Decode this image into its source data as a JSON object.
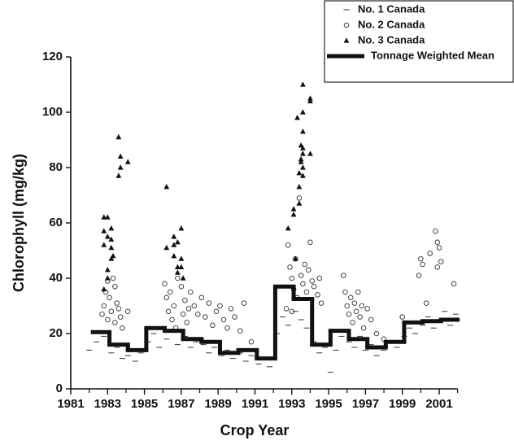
{
  "chart_data": {
    "type": "scatter",
    "x_label": "Crop Year",
    "y_label": "Chlorophyll (mg/kg)",
    "xlim": [
      1981,
      2002
    ],
    "ylim": [
      0,
      120
    ],
    "xticks": [
      1981,
      1983,
      1985,
      1987,
      1989,
      1991,
      1993,
      1995,
      1997,
      1999,
      2001
    ],
    "xminorticks": [
      1982,
      1984,
      1986,
      1988,
      1990,
      1992,
      1994,
      1996,
      1998,
      2000,
      2002
    ],
    "yticks": [
      0,
      20,
      40,
      60,
      80,
      100,
      120
    ],
    "legend": "top-right",
    "series": [
      {
        "name": "No. 1 Canada",
        "color": "#333333",
        "marker": "dash",
        "x": [
          1982.0,
          1982.4,
          1982.8,
          1983.2,
          1983.5,
          1983.8,
          1984.1,
          1984.5,
          1984.8,
          1985.2,
          1985.5,
          1985.8,
          1986.2,
          1986.5,
          1986.8,
          1987.2,
          1987.5,
          1987.8,
          1988.2,
          1988.5,
          1988.8,
          1989.2,
          1989.5,
          1989.8,
          1990.2,
          1990.5,
          1990.8,
          1991.2,
          1991.5,
          1991.8,
          1992.2,
          1992.5,
          1992.8,
          1993.2,
          1993.5,
          1993.8,
          1994.2,
          1994.5,
          1994.8,
          1995.1,
          1995.4,
          1995.7,
          1996.1,
          1996.4,
          1996.7,
          1997.0,
          1997.3,
          1997.6,
          1998.0,
          1998.3,
          1998.7,
          1999.1,
          1999.4,
          1999.7,
          2000.1,
          2000.4,
          2000.7,
          2001.0,
          2001.3,
          2001.6,
          2001.9
        ],
        "values": [
          14,
          17,
          19,
          13,
          15,
          11,
          12,
          10,
          13,
          17,
          20,
          15,
          18,
          21,
          16,
          19,
          15,
          17,
          16,
          13,
          15,
          12,
          14,
          11,
          13,
          10,
          12,
          9,
          11,
          8,
          20,
          26,
          23,
          28,
          25,
          22,
          17,
          13,
          15,
          6,
          14,
          19,
          17,
          15,
          19,
          14,
          16,
          12,
          14,
          17,
          15,
          19,
          22,
          20,
          23,
          26,
          22,
          25,
          28,
          23,
          27
        ]
      },
      {
        "name": "No. 2 Canada",
        "color": "#333333",
        "marker": "circle",
        "x": [
          1982.8,
          1982.9,
          1983.0,
          1983.1,
          1983.2,
          1983.3,
          1983.4,
          1983.5,
          1983.6,
          1983.7,
          1983.8,
          1982.7,
          1983.0,
          1984.1,
          1983.4,
          1986.1,
          1986.2,
          1986.3,
          1986.4,
          1986.5,
          1986.6,
          1986.7,
          1986.8,
          1987.0,
          1987.1,
          1987.2,
          1987.3,
          1987.4,
          1987.5,
          1987.7,
          1987.9,
          1988.1,
          1988.3,
          1988.5,
          1988.7,
          1988.9,
          1989.1,
          1989.3,
          1989.5,
          1989.7,
          1989.9,
          1990.2,
          1990.4,
          1990.8,
          1992.7,
          1992.8,
          1992.9,
          1993.0,
          1993.1,
          1993.2,
          1993.3,
          1993.4,
          1993.5,
          1993.6,
          1993.7,
          1993.8,
          1993.9,
          1994.0,
          1994.1,
          1994.2,
          1994.4,
          1994.5,
          1994.6,
          1993.0,
          1995.8,
          1995.9,
          1996.0,
          1996.1,
          1996.2,
          1996.3,
          1996.4,
          1996.5,
          1996.6,
          1996.7,
          1996.8,
          1996.9,
          1997.1,
          1997.3,
          1997.6,
          1998.0,
          1999.0,
          1999.9,
          2000.0,
          2000.1,
          2000.3,
          2000.5,
          2000.8,
          2000.9,
          2001.0,
          2001.1,
          2000.9,
          2001.8
        ],
        "values": [
          30,
          35,
          39,
          33,
          28,
          40,
          37,
          31,
          29,
          26,
          22,
          27,
          25,
          28,
          24,
          38,
          33,
          28,
          35,
          25,
          30,
          22,
          40,
          37,
          27,
          32,
          24,
          29,
          35,
          30,
          27,
          33,
          26,
          31,
          23,
          28,
          30,
          25,
          22,
          29,
          26,
          21,
          31,
          17,
          29,
          52,
          44,
          40,
          36,
          47,
          33,
          69,
          41,
          38,
          45,
          35,
          43,
          53,
          39,
          37,
          34,
          40,
          31,
          28,
          41,
          35,
          30,
          27,
          33,
          24,
          31,
          28,
          35,
          26,
          30,
          22,
          29,
          25,
          20,
          18,
          26,
          41,
          47,
          45,
          31,
          49,
          57,
          53,
          51,
          46,
          44,
          38
        ]
      },
      {
        "name": "No. 3 Canada",
        "color": "#111111",
        "marker": "triangle",
        "x": [
          1982.8,
          1982.8,
          1982.8,
          1982.8,
          1983.0,
          1983.0,
          1983.0,
          1983.0,
          1983.2,
          1983.2,
          1983.2,
          1983.2,
          1983.3,
          1983.6,
          1983.6,
          1983.7,
          1983.7,
          1984.1,
          1986.2,
          1986.2,
          1986.6,
          1986.6,
          1986.6,
          1986.8,
          1986.8,
          1986.8,
          1987.0,
          1987.0,
          1987.0,
          1987.1,
          1992.8,
          1993.1,
          1993.1,
          1993.4,
          1993.4,
          1993.4,
          1993.5,
          1993.5,
          1993.5,
          1993.6,
          1993.6,
          1993.6,
          1993.6,
          1993.6,
          1993.6,
          1993.6,
          1993.3,
          1994.0,
          1994.0,
          1994.0,
          1993.2
        ],
        "values": [
          62,
          57,
          52,
          36,
          62,
          55,
          43,
          40,
          58,
          54,
          51,
          47,
          48,
          91,
          77,
          84,
          80,
          82,
          73,
          51,
          55,
          52,
          48,
          53,
          44,
          42,
          58,
          47,
          44,
          40,
          58,
          63,
          65,
          78,
          73,
          67,
          88,
          83,
          82,
          110,
          100,
          93,
          87,
          85,
          80,
          77,
          98,
          105,
          104,
          85,
          47
        ]
      },
      {
        "name": "Tonnage Weighted Mean",
        "color": "#111111",
        "marker": "step",
        "x": [
          1982.2,
          1983.1,
          1984.1,
          1985.1,
          1986.1,
          1987.1,
          1988.1,
          1989.1,
          1990.1,
          1991.1,
          1992.1,
          1993.1,
          1994.1,
          1995.1,
          1996.1,
          1997.1,
          1998.1,
          1999.1,
          2000.1,
          2001.1
        ],
        "values": [
          20.5,
          16,
          14,
          22,
          21,
          18,
          17,
          13,
          14,
          11,
          37,
          32.5,
          16,
          21,
          18,
          15,
          17,
          24,
          24.5,
          25
        ]
      }
    ]
  }
}
